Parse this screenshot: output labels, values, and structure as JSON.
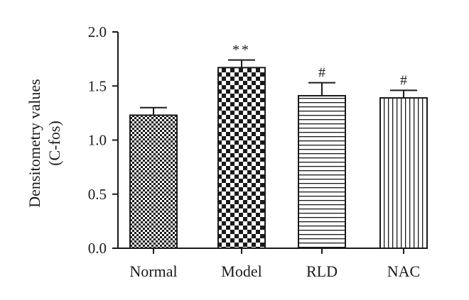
{
  "chart_data": {
    "type": "bar",
    "categories": [
      "Normal",
      "Model",
      "RLD",
      "NAC"
    ],
    "values": [
      1.23,
      1.67,
      1.41,
      1.39
    ],
    "errors": [
      0.07,
      0.07,
      0.12,
      0.07
    ],
    "annotations": [
      "",
      "**",
      "#",
      "#"
    ],
    "patterns": [
      "fine-checker",
      "checker",
      "horizontal-lines",
      "vertical-lines"
    ],
    "ylabel_line1": "Densitometry values",
    "ylabel_line2": "(C-fos)",
    "ylim": [
      0,
      2.0
    ],
    "yticks": [
      "0.0",
      "0.5",
      "1.0",
      "1.5",
      "2.0"
    ],
    "grid": false,
    "colors": {
      "bar_stroke": "#1a1a1a",
      "pattern": "#1a1a1a",
      "background": "#ffffff"
    }
  }
}
